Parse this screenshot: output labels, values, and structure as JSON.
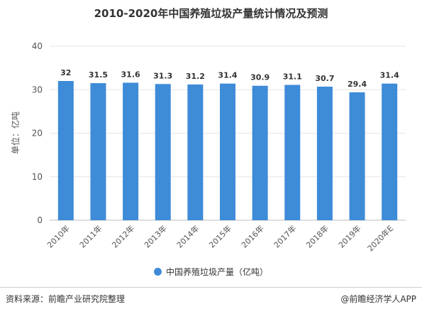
{
  "chart_data": {
    "type": "bar",
    "title": "2010-2020年中国养殖垃圾产量统计情况及预测",
    "ylabel": "单位：亿吨",
    "xlabel": "",
    "ylim": [
      0,
      40
    ],
    "yticks": [
      0,
      10,
      20,
      30,
      40
    ],
    "categories": [
      "2010年",
      "2011年",
      "2012年",
      "2013年",
      "2014年",
      "2015年",
      "2016年",
      "2017年",
      "2018年",
      "2019年",
      "2020年E"
    ],
    "series": [
      {
        "name": "中国养殖垃圾产量（亿吨）",
        "values": [
          32,
          31.5,
          31.6,
          31.3,
          31.2,
          31.4,
          30.9,
          31.1,
          30.7,
          29.4,
          31.4
        ],
        "labels": [
          "32",
          "31.5",
          "31.6",
          "31.3",
          "31.2",
          "31.4",
          "30.9",
          "31.1",
          "30.7",
          "29.4",
          "31.4"
        ]
      }
    ],
    "grid": true,
    "legend": "bottom",
    "bar_color": "#3e8bd8"
  },
  "footer": {
    "source": "资料来源：前瞻产业研究院整理",
    "brand": "@前瞻经济学人APP"
  }
}
